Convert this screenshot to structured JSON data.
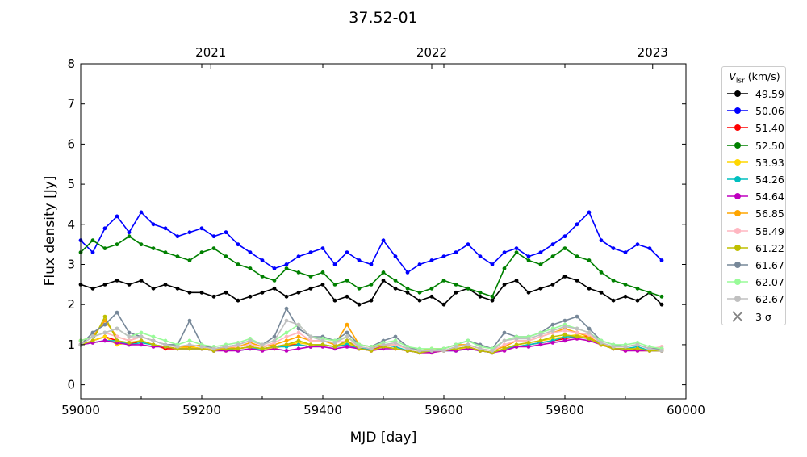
{
  "chart_data": {
    "type": "line",
    "title": "37.52-01",
    "xlabel": "MJD [day]",
    "ylabel": "Flux density [Jy]",
    "xlim": [
      59000,
      60000
    ],
    "ylim": [
      -0.35,
      8
    ],
    "xticks": [
      59000,
      59200,
      59400,
      59600,
      59800,
      60000
    ],
    "yticks": [
      0,
      1,
      2,
      3,
      4,
      5,
      6,
      7,
      8
    ],
    "top_axis": {
      "ticks": [
        {
          "label": "2021",
          "mjd": 59215
        },
        {
          "label": "2022",
          "mjd": 59580
        },
        {
          "label": "2023",
          "mjd": 59945
        }
      ]
    },
    "legend": {
      "title_main": "V",
      "title_sub": "lsr",
      "title_unit": " (km/s)",
      "placement": "outside-right",
      "sigma_label": "3 σ",
      "sigma_color": "#808080"
    },
    "grid": false,
    "x": [
      59000,
      59020,
      59040,
      59060,
      59080,
      59100,
      59120,
      59140,
      59160,
      59180,
      59200,
      59220,
      59240,
      59260,
      59280,
      59300,
      59320,
      59340,
      59360,
      59380,
      59400,
      59420,
      59440,
      59460,
      59480,
      59500,
      59520,
      59540,
      59560,
      59580,
      59600,
      59620,
      59640,
      59660,
      59680,
      59700,
      59720,
      59740,
      59760,
      59780,
      59800,
      59820,
      59840,
      59860,
      59880,
      59900,
      59920,
      59940,
      59960
    ],
    "series": [
      {
        "name": "49.59",
        "color": "#000000",
        "values": [
          2.5,
          2.4,
          2.5,
          2.6,
          2.5,
          2.6,
          2.4,
          2.5,
          2.4,
          2.3,
          2.3,
          2.2,
          2.3,
          2.1,
          2.2,
          2.3,
          2.4,
          2.2,
          2.3,
          2.4,
          2.5,
          2.1,
          2.2,
          2.0,
          2.1,
          2.6,
          2.4,
          2.3,
          2.1,
          2.2,
          2.0,
          2.3,
          2.4,
          2.2,
          2.1,
          2.5,
          2.6,
          2.3,
          2.4,
          2.5,
          2.7,
          2.6,
          2.4,
          2.3,
          2.1,
          2.2,
          2.1,
          2.3,
          2.0
        ]
      },
      {
        "name": "50.06",
        "color": "#0000ff",
        "values": [
          3.6,
          3.3,
          3.9,
          4.2,
          3.8,
          4.3,
          4.0,
          3.9,
          3.7,
          3.8,
          3.9,
          3.7,
          3.8,
          3.5,
          3.3,
          3.1,
          2.9,
          3.0,
          3.2,
          3.3,
          3.4,
          3.0,
          3.3,
          3.1,
          3.0,
          3.6,
          3.2,
          2.8,
          3.0,
          3.1,
          3.2,
          3.3,
          3.5,
          3.2,
          3.0,
          3.3,
          3.4,
          3.2,
          3.3,
          3.5,
          3.7,
          4.0,
          4.3,
          3.6,
          3.4,
          3.3,
          3.5,
          3.4,
          3.1
        ]
      },
      {
        "name": "51.40",
        "color": "#ff0000",
        "values": [
          1.0,
          1.1,
          1.2,
          1.1,
          1.0,
          1.1,
          1.0,
          0.9,
          0.9,
          0.95,
          0.9,
          0.85,
          0.9,
          0.9,
          0.95,
          0.9,
          0.95,
          1.0,
          1.0,
          0.95,
          1.0,
          0.95,
          1.0,
          0.9,
          0.9,
          0.95,
          0.9,
          0.85,
          0.8,
          0.85,
          0.85,
          0.9,
          0.95,
          0.85,
          0.8,
          0.9,
          0.95,
          1.0,
          1.05,
          1.1,
          1.15,
          1.2,
          1.2,
          1.0,
          0.9,
          0.85,
          0.9,
          0.85,
          0.85
        ]
      },
      {
        "name": "52.50",
        "color": "#008000",
        "values": [
          3.3,
          3.6,
          3.4,
          3.5,
          3.7,
          3.5,
          3.4,
          3.3,
          3.2,
          3.1,
          3.3,
          3.4,
          3.2,
          3.0,
          2.9,
          2.7,
          2.6,
          2.9,
          2.8,
          2.7,
          2.8,
          2.5,
          2.6,
          2.4,
          2.5,
          2.8,
          2.6,
          2.4,
          2.3,
          2.4,
          2.6,
          2.5,
          2.4,
          2.3,
          2.2,
          2.9,
          3.3,
          3.1,
          3.0,
          3.2,
          3.4,
          3.2,
          3.1,
          2.8,
          2.6,
          2.5,
          2.4,
          2.3,
          2.2
        ]
      },
      {
        "name": "53.93",
        "color": "#ffd700",
        "values": [
          1.0,
          1.1,
          1.2,
          1.0,
          1.05,
          1.1,
          1.0,
          0.95,
          0.9,
          0.95,
          0.9,
          0.9,
          0.85,
          0.9,
          0.95,
          0.9,
          0.9,
          1.0,
          1.05,
          1.0,
          1.0,
          0.95,
          1.05,
          0.9,
          0.85,
          0.95,
          0.9,
          0.85,
          0.8,
          0.8,
          0.85,
          0.9,
          0.9,
          0.85,
          0.8,
          0.9,
          1.0,
          1.05,
          1.1,
          1.15,
          1.2,
          1.25,
          1.15,
          1.0,
          0.9,
          0.9,
          0.85,
          0.85,
          0.85
        ]
      },
      {
        "name": "54.26",
        "color": "#00bfbf",
        "values": [
          1.0,
          1.05,
          1.1,
          1.1,
          1.0,
          1.05,
          1.0,
          0.95,
          0.9,
          0.9,
          0.9,
          0.85,
          0.9,
          0.85,
          0.9,
          0.9,
          0.95,
          0.95,
          1.0,
          0.95,
          1.0,
          0.95,
          1.0,
          0.9,
          0.9,
          1.0,
          0.95,
          0.85,
          0.8,
          0.85,
          0.85,
          0.85,
          0.9,
          0.85,
          0.8,
          0.9,
          0.95,
          1.0,
          1.05,
          1.1,
          1.2,
          1.2,
          1.15,
          1.05,
          0.9,
          0.9,
          0.95,
          0.85,
          0.85
        ]
      },
      {
        "name": "54.64",
        "color": "#bf00bf",
        "values": [
          1.0,
          1.05,
          1.1,
          1.05,
          1.0,
          1.0,
          0.95,
          0.95,
          0.9,
          0.9,
          0.9,
          0.85,
          0.85,
          0.85,
          0.9,
          0.85,
          0.9,
          0.85,
          0.9,
          0.95,
          0.95,
          0.9,
          0.95,
          0.9,
          0.85,
          0.9,
          0.9,
          0.85,
          0.8,
          0.8,
          0.85,
          0.85,
          0.9,
          0.85,
          0.8,
          0.85,
          0.95,
          0.95,
          1.0,
          1.05,
          1.1,
          1.15,
          1.1,
          1.0,
          0.9,
          0.85,
          0.85,
          0.85,
          0.85
        ]
      },
      {
        "name": "56.85",
        "color": "#ffa500",
        "values": [
          1.1,
          1.2,
          1.6,
          1.2,
          1.1,
          1.2,
          1.1,
          1.0,
          0.95,
          0.95,
          1.0,
          0.9,
          0.9,
          0.95,
          1.05,
          0.95,
          1.0,
          1.1,
          1.2,
          1.1,
          1.1,
          1.0,
          1.5,
          1.0,
          0.95,
          1.0,
          1.0,
          0.9,
          0.85,
          0.9,
          0.9,
          1.0,
          1.0,
          0.9,
          0.85,
          0.95,
          1.1,
          1.1,
          1.2,
          1.3,
          1.4,
          1.3,
          1.2,
          1.0,
          0.95,
          0.95,
          1.0,
          0.9,
          0.9
        ]
      },
      {
        "name": "58.49",
        "color": "#ffb6c1",
        "values": [
          1.1,
          1.2,
          1.3,
          1.2,
          1.1,
          1.2,
          1.1,
          1.0,
          0.95,
          1.0,
          0.95,
          0.9,
          0.95,
          0.95,
          1.0,
          0.95,
          1.05,
          1.2,
          1.3,
          1.1,
          1.1,
          1.05,
          1.1,
          0.95,
          0.9,
          1.0,
          1.0,
          0.9,
          0.85,
          0.85,
          0.85,
          0.95,
          1.0,
          0.9,
          0.85,
          1.0,
          1.1,
          1.1,
          1.2,
          1.3,
          1.35,
          1.3,
          1.25,
          1.05,
          0.95,
          0.95,
          1.0,
          0.9,
          0.95
        ]
      },
      {
        "name": "61.22",
        "color": "#bfbf00",
        "values": [
          1.0,
          1.1,
          1.7,
          1.1,
          1.05,
          1.1,
          1.0,
          0.95,
          0.9,
          0.9,
          0.9,
          0.85,
          0.9,
          0.9,
          0.95,
          0.9,
          0.95,
          1.0,
          1.1,
          1.0,
          1.0,
          0.95,
          1.1,
          0.9,
          0.85,
          0.95,
          0.9,
          0.85,
          0.8,
          0.85,
          0.85,
          0.9,
          0.95,
          0.85,
          0.8,
          0.9,
          1.0,
          1.05,
          1.1,
          1.2,
          1.25,
          1.2,
          1.15,
          1.0,
          0.9,
          0.9,
          0.9,
          0.85,
          0.85
        ]
      },
      {
        "name": "61.67",
        "color": "#778899",
        "values": [
          1.0,
          1.3,
          1.5,
          1.8,
          1.3,
          1.2,
          1.1,
          1.0,
          1.0,
          1.6,
          1.0,
          0.9,
          0.95,
          1.0,
          1.1,
          1.0,
          1.2,
          1.9,
          1.4,
          1.2,
          1.2,
          1.1,
          1.3,
          1.0,
          0.95,
          1.1,
          1.2,
          0.95,
          0.85,
          0.85,
          0.9,
          1.0,
          1.1,
          1.0,
          0.9,
          1.3,
          1.2,
          1.2,
          1.3,
          1.5,
          1.6,
          1.7,
          1.4,
          1.1,
          1.0,
          0.95,
          1.0,
          0.9,
          0.9
        ]
      },
      {
        "name": "62.07",
        "color": "#98fb98",
        "values": [
          1.1,
          1.2,
          1.3,
          1.4,
          1.2,
          1.3,
          1.2,
          1.1,
          1.0,
          1.1,
          1.0,
          0.95,
          1.0,
          1.05,
          1.15,
          1.0,
          1.1,
          1.3,
          1.5,
          1.2,
          1.15,
          1.1,
          1.2,
          1.0,
          0.95,
          1.05,
          1.1,
          0.95,
          0.9,
          0.9,
          0.9,
          1.0,
          1.1,
          0.95,
          0.9,
          1.1,
          1.2,
          1.2,
          1.3,
          1.4,
          1.5,
          1.4,
          1.3,
          1.1,
          1.0,
          1.0,
          1.05,
          0.95,
          0.9
        ]
      },
      {
        "name": "62.67",
        "color": "#c0c0c0",
        "values": [
          1.0,
          1.2,
          1.3,
          1.4,
          1.2,
          1.2,
          1.1,
          1.0,
          0.95,
          1.0,
          0.95,
          0.9,
          0.95,
          1.0,
          1.1,
          1.0,
          1.1,
          1.6,
          1.5,
          1.2,
          1.1,
          1.05,
          1.2,
          0.95,
          0.9,
          1.0,
          1.05,
          0.9,
          0.85,
          0.85,
          0.85,
          0.95,
          1.0,
          0.9,
          0.85,
          1.1,
          1.15,
          1.15,
          1.25,
          1.35,
          1.45,
          1.4,
          1.3,
          1.05,
          0.95,
          0.95,
          1.0,
          0.9,
          0.85
        ]
      }
    ]
  }
}
